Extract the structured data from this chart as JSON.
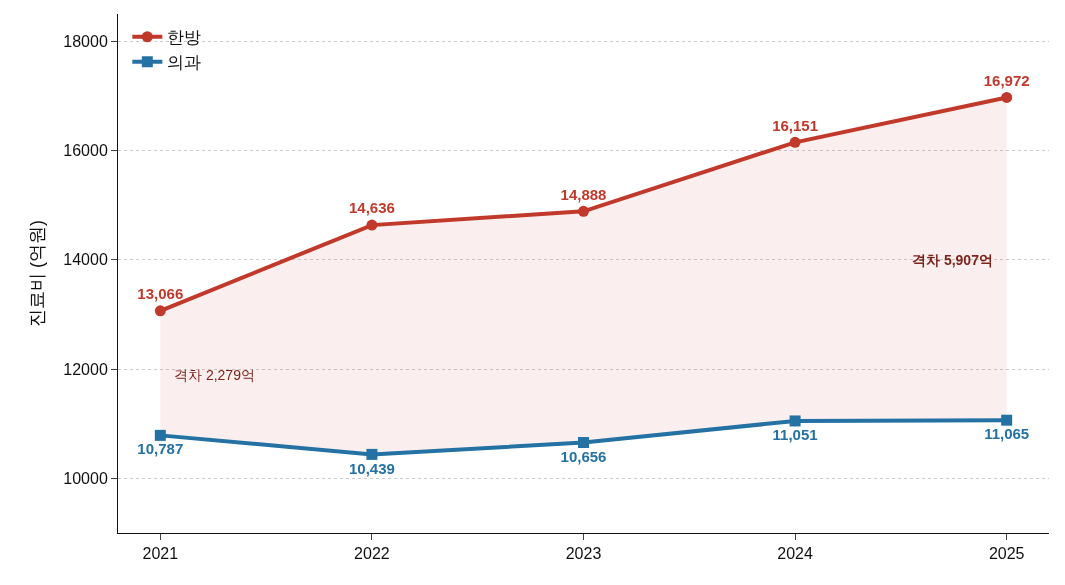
{
  "chart_data": {
    "type": "line",
    "ylabel": "진료비 (억원)",
    "x": [
      2021,
      2022,
      2023,
      2024,
      2025
    ],
    "xlim": [
      2020.8,
      2025.2
    ],
    "xticks": [
      2021,
      2022,
      2023,
      2024,
      2025
    ],
    "ylim": [
      9000,
      18500
    ],
    "yticks": [
      10000,
      12000,
      14000,
      16000,
      18000
    ],
    "grid": "y",
    "legend": "top left",
    "line_style": "solid",
    "series": [
      {
        "name": "한방",
        "color": "#c0392b",
        "marker": "circle",
        "values": [
          13066,
          14636,
          14888,
          16151,
          16972
        ],
        "value_labels": [
          "13,066",
          "14,636",
          "14,888",
          "16,151",
          "16,972"
        ],
        "lower": [
          10787,
          10439,
          10656,
          11051,
          11065
        ],
        "upper": [
          13066,
          14636,
          14888,
          16151,
          16972
        ]
      },
      {
        "name": "의과",
        "color": "#2471a3",
        "marker": "square",
        "values": [
          10787,
          10439,
          10656,
          11051,
          11065
        ],
        "value_labels": [
          "10,787",
          "10,439",
          "10,656",
          "11,051",
          "11,065"
        ]
      }
    ],
    "annotations": [
      {
        "text": "격차 2,279억",
        "x": 2021,
        "y": 11900
      },
      {
        "text": "격차 5,907억",
        "x": 2025,
        "y": 14000
      }
    ]
  }
}
